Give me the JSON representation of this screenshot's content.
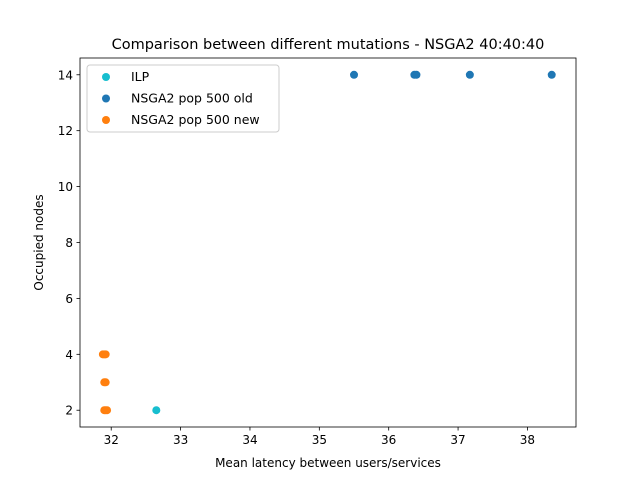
{
  "chart_data": {
    "type": "scatter",
    "title": "Comparison between different mutations - NSGA2 40:40:40",
    "xlabel": "Mean latency between users/services",
    "ylabel": "Occupied nodes",
    "xlim": [
      31.55,
      38.7
    ],
    "ylim": [
      1.4,
      14.6
    ],
    "xticks": [
      32,
      33,
      34,
      35,
      36,
      37,
      38
    ],
    "yticks": [
      2,
      4,
      6,
      8,
      10,
      12,
      14
    ],
    "grid": false,
    "legend_position": "top-left",
    "series": [
      {
        "name": "ILP",
        "color": "#17becf",
        "points": [
          [
            32.65,
            2
          ]
        ]
      },
      {
        "name": "NSGA2 pop 500 old",
        "color": "#1f77b4",
        "points": [
          [
            35.5,
            14
          ],
          [
            36.37,
            14
          ],
          [
            36.4,
            14
          ],
          [
            37.17,
            14
          ],
          [
            38.35,
            14
          ]
        ]
      },
      {
        "name": "NSGA2 pop 500 new",
        "color": "#ff7f0e",
        "points": [
          [
            31.88,
            4
          ],
          [
            31.9,
            4
          ],
          [
            31.92,
            4
          ],
          [
            31.9,
            3
          ],
          [
            31.92,
            3
          ],
          [
            31.9,
            2
          ],
          [
            31.92,
            2
          ],
          [
            31.94,
            2
          ]
        ]
      }
    ]
  }
}
